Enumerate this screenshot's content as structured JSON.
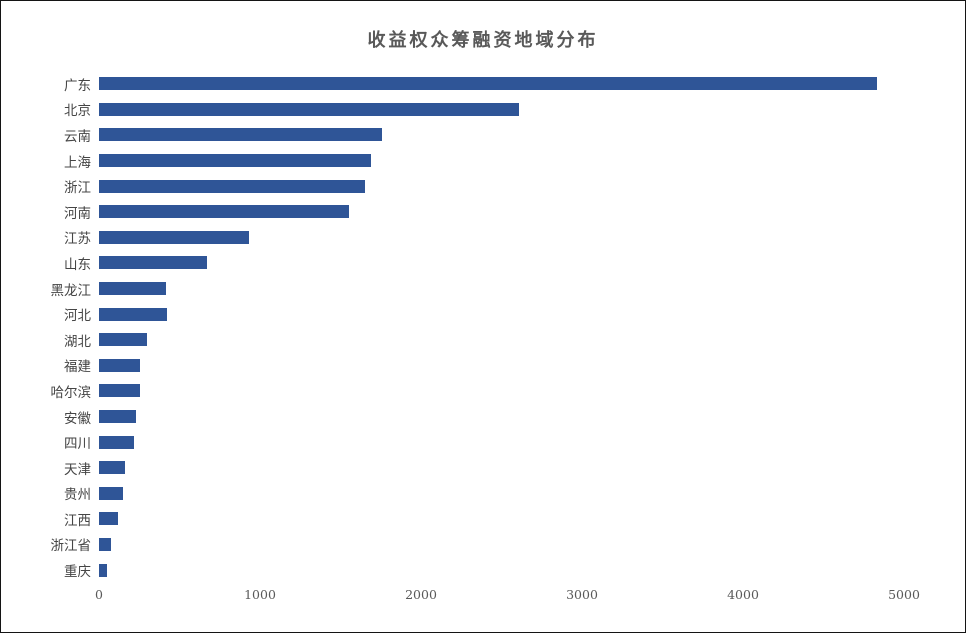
{
  "window": {
    "background": "#ffffff",
    "border_color": "#141414"
  },
  "chart_data": {
    "type": "bar",
    "orientation": "horizontal",
    "title": "收益权众筹融资地域分布",
    "categories": [
      "广东",
      "北京",
      "云南",
      "上海",
      "浙江",
      "河南",
      "江苏",
      "山东",
      "黑龙江",
      "河北",
      "湖北",
      "福建",
      "哈尔滨",
      "安徽",
      "四川",
      "天津",
      "贵州",
      "江西",
      "浙江省",
      "重庆"
    ],
    "values": [
      4830,
      2610,
      1760,
      1690,
      1650,
      1550,
      930,
      670,
      415,
      420,
      300,
      255,
      255,
      230,
      220,
      160,
      150,
      120,
      75,
      50
    ],
    "xlabel": "",
    "ylabel": "",
    "xlim": [
      0,
      5000
    ],
    "xticks": [
      0,
      1000,
      2000,
      3000,
      4000,
      5000
    ],
    "grid": false,
    "legend": false,
    "bar_color": "#2F5597",
    "title_color": "#595959",
    "label_color": "#454545",
    "tick_color": "#595959"
  }
}
